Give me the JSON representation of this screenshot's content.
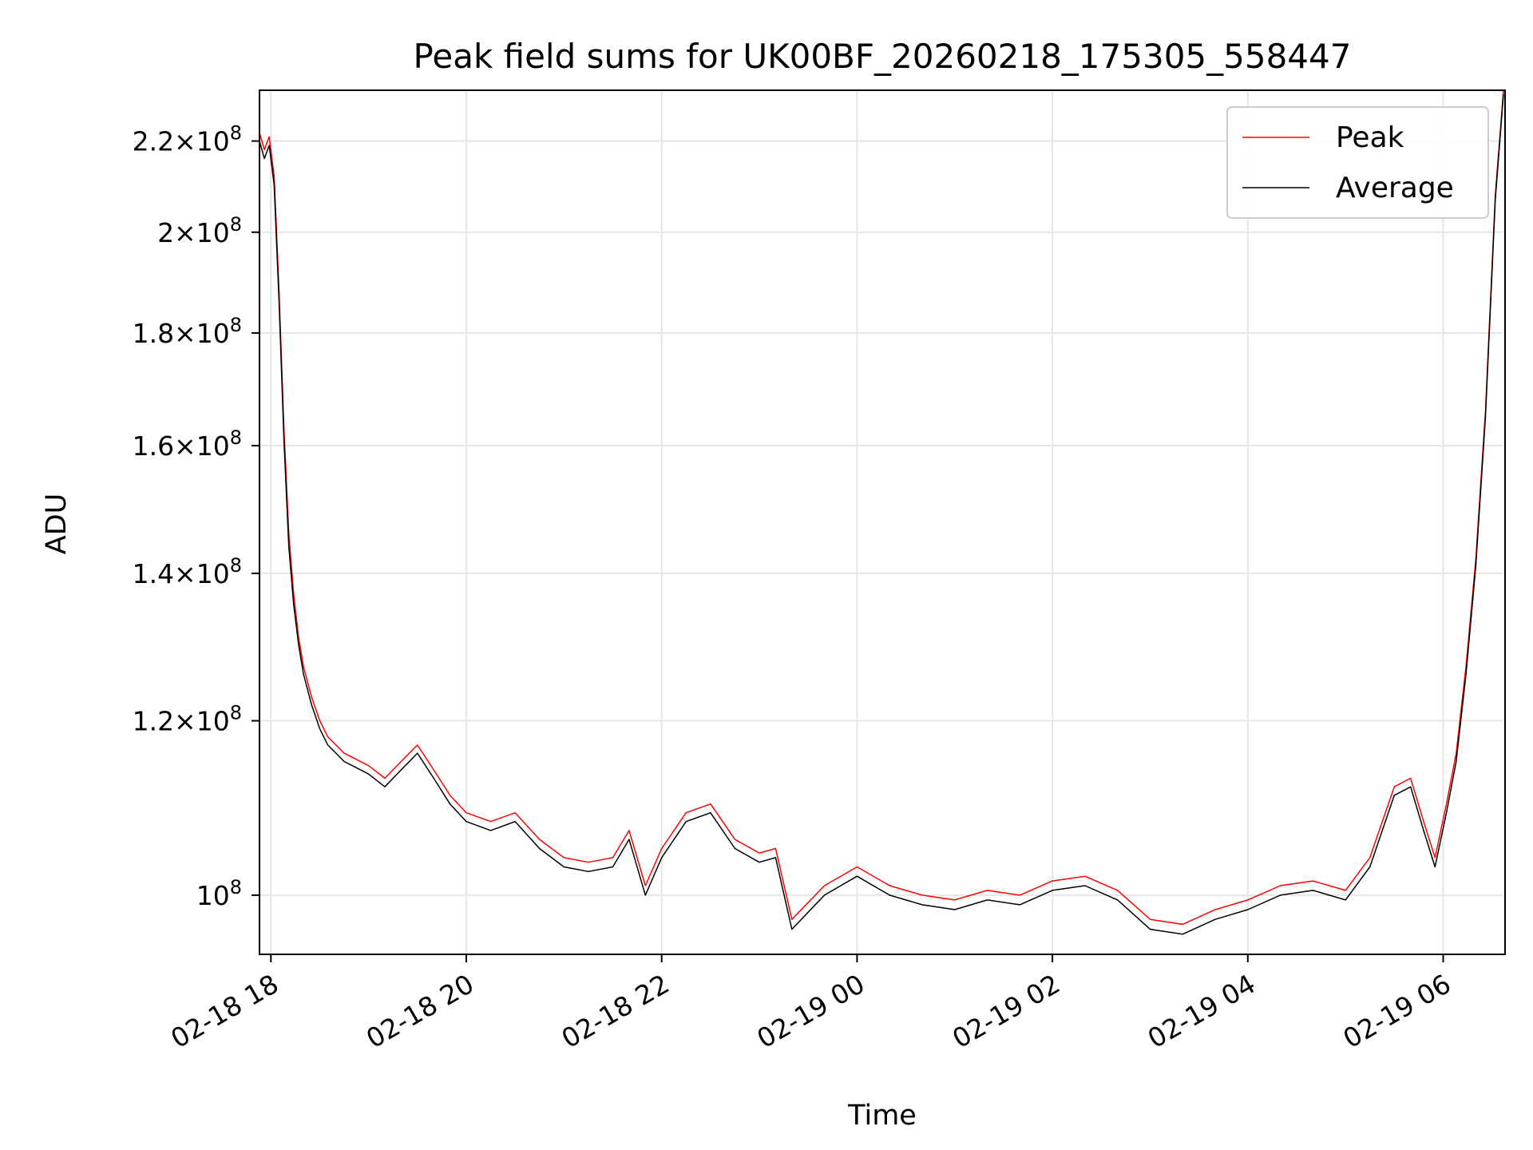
{
  "chart_data": {
    "type": "line",
    "title": "Peak field sums for UK00BF_20260218_175305_558447",
    "xlabel": "Time",
    "ylabel": "ADU",
    "y_scale": "log",
    "ylim": [
      94000000,
      232000000
    ],
    "xlim": [
      "2026-02-18T17:53",
      "2026-02-19T06:38"
    ],
    "x_ticks": [
      {
        "t": "2026-02-18T18:00",
        "label": "02-18 18"
      },
      {
        "t": "2026-02-18T20:00",
        "label": "02-18 20"
      },
      {
        "t": "2026-02-18T22:00",
        "label": "02-18 22"
      },
      {
        "t": "2026-02-19T00:00",
        "label": "02-19 00"
      },
      {
        "t": "2026-02-19T02:00",
        "label": "02-19 02"
      },
      {
        "t": "2026-02-19T04:00",
        "label": "02-19 04"
      },
      {
        "t": "2026-02-19T06:00",
        "label": "02-19 06"
      }
    ],
    "y_ticks": [
      {
        "value": 100000000,
        "mant": "",
        "exp": "8"
      },
      {
        "value": 120000000,
        "mant": "1.2",
        "exp": "8"
      },
      {
        "value": 140000000,
        "mant": "1.4",
        "exp": "8"
      },
      {
        "value": 160000000,
        "mant": "1.6",
        "exp": "8"
      },
      {
        "value": 180000000,
        "mant": "1.8",
        "exp": "8"
      },
      {
        "value": 200000000,
        "mant": "2",
        "exp": "8"
      },
      {
        "value": 220000000,
        "mant": "2.2",
        "exp": "8"
      }
    ],
    "grid": true,
    "legend_position": "top-right",
    "series": [
      {
        "name": "Peak",
        "color": "#ff0000",
        "x": [
          "2026-02-18T17:53",
          "2026-02-18T17:56",
          "2026-02-18T17:59",
          "2026-02-18T18:02",
          "2026-02-18T18:05",
          "2026-02-18T18:08",
          "2026-02-18T18:11",
          "2026-02-18T18:14",
          "2026-02-18T18:17",
          "2026-02-18T18:20",
          "2026-02-18T18:25",
          "2026-02-18T18:30",
          "2026-02-18T18:35",
          "2026-02-18T18:40",
          "2026-02-18T18:45",
          "2026-02-18T18:50",
          "2026-02-18T19:00",
          "2026-02-18T19:10",
          "2026-02-18T19:20",
          "2026-02-18T19:30",
          "2026-02-18T19:40",
          "2026-02-18T19:50",
          "2026-02-18T20:00",
          "2026-02-18T20:15",
          "2026-02-18T20:30",
          "2026-02-18T20:45",
          "2026-02-18T21:00",
          "2026-02-18T21:15",
          "2026-02-18T21:30",
          "2026-02-18T21:40",
          "2026-02-18T21:50",
          "2026-02-18T22:00",
          "2026-02-18T22:15",
          "2026-02-18T22:30",
          "2026-02-18T22:45",
          "2026-02-18T23:00",
          "2026-02-18T23:10",
          "2026-02-18T23:20",
          "2026-02-18T23:40",
          "2026-02-19T00:00",
          "2026-02-19T00:20",
          "2026-02-19T00:40",
          "2026-02-19T01:00",
          "2026-02-19T01:20",
          "2026-02-19T01:40",
          "2026-02-19T02:00",
          "2026-02-19T02:20",
          "2026-02-19T02:40",
          "2026-02-19T03:00",
          "2026-02-19T03:20",
          "2026-02-19T03:40",
          "2026-02-19T04:00",
          "2026-02-19T04:20",
          "2026-02-19T04:40",
          "2026-02-19T05:00",
          "2026-02-19T05:15",
          "2026-02-19T05:30",
          "2026-02-19T05:40",
          "2026-02-19T05:48",
          "2026-02-19T05:55",
          "2026-02-19T06:02",
          "2026-02-19T06:08",
          "2026-02-19T06:14",
          "2026-02-19T06:20",
          "2026-02-19T06:26",
          "2026-02-19T06:32",
          "2026-02-19T06:37"
        ],
        "values": [
          222000000,
          218000000,
          221000000,
          212000000,
          188000000,
          163000000,
          146000000,
          137000000,
          131000000,
          127000000,
          123000000,
          120000000,
          118000000,
          117000000,
          116000000,
          115500000,
          114500000,
          113000000,
          115000000,
          117000000,
          114000000,
          111000000,
          109000000,
          108000000,
          109000000,
          106000000,
          104000000,
          103500000,
          104000000,
          107000000,
          101000000,
          105000000,
          109000000,
          110000000,
          106000000,
          104500000,
          105000000,
          97500000,
          101000000,
          103000000,
          101000000,
          100000000,
          99500000,
          100500000,
          100000000,
          101500000,
          102000000,
          100500000,
          97500000,
          97000000,
          98500000,
          99500000,
          101000000,
          101500000,
          100500000,
          104000000,
          112000000,
          113000000,
          108000000,
          104000000,
          110000000,
          116000000,
          127000000,
          142000000,
          166000000,
          208000000,
          232000000
        ]
      },
      {
        "name": "Average",
        "color": "#000000",
        "x": [
          "2026-02-18T17:53",
          "2026-02-18T17:56",
          "2026-02-18T17:59",
          "2026-02-18T18:02",
          "2026-02-18T18:05",
          "2026-02-18T18:08",
          "2026-02-18T18:11",
          "2026-02-18T18:14",
          "2026-02-18T18:17",
          "2026-02-18T18:20",
          "2026-02-18T18:25",
          "2026-02-18T18:30",
          "2026-02-18T18:35",
          "2026-02-18T18:40",
          "2026-02-18T18:45",
          "2026-02-18T18:50",
          "2026-02-18T19:00",
          "2026-02-18T19:10",
          "2026-02-18T19:20",
          "2026-02-18T19:30",
          "2026-02-18T19:40",
          "2026-02-18T19:50",
          "2026-02-18T20:00",
          "2026-02-18T20:15",
          "2026-02-18T20:30",
          "2026-02-18T20:45",
          "2026-02-18T21:00",
          "2026-02-18T21:15",
          "2026-02-18T21:30",
          "2026-02-18T21:40",
          "2026-02-18T21:50",
          "2026-02-18T22:00",
          "2026-02-18T22:15",
          "2026-02-18T22:30",
          "2026-02-18T22:45",
          "2026-02-18T23:00",
          "2026-02-18T23:10",
          "2026-02-18T23:20",
          "2026-02-18T23:40",
          "2026-02-19T00:00",
          "2026-02-19T00:20",
          "2026-02-19T00:40",
          "2026-02-19T01:00",
          "2026-02-19T01:20",
          "2026-02-19T01:40",
          "2026-02-19T02:00",
          "2026-02-19T02:20",
          "2026-02-19T02:40",
          "2026-02-19T03:00",
          "2026-02-19T03:20",
          "2026-02-19T03:40",
          "2026-02-19T04:00",
          "2026-02-19T04:20",
          "2026-02-19T04:40",
          "2026-02-19T05:00",
          "2026-02-19T05:15",
          "2026-02-19T05:30",
          "2026-02-19T05:40",
          "2026-02-19T05:48",
          "2026-02-19T05:55",
          "2026-02-19T06:02",
          "2026-02-19T06:08",
          "2026-02-19T06:14",
          "2026-02-19T06:20",
          "2026-02-19T06:26",
          "2026-02-19T06:32",
          "2026-02-19T06:37"
        ],
        "values": [
          220000000,
          216000000,
          219000000,
          210000000,
          186000000,
          161000000,
          144000000,
          135500000,
          130000000,
          126000000,
          122000000,
          119000000,
          117000000,
          116000000,
          115000000,
          114500000,
          113500000,
          112000000,
          114000000,
          116000000,
          113000000,
          110000000,
          108000000,
          107000000,
          108000000,
          105000000,
          103000000,
          102500000,
          103000000,
          106000000,
          100000000,
          104000000,
          108000000,
          109000000,
          105000000,
          103500000,
          104000000,
          96500000,
          100000000,
          102000000,
          100000000,
          99000000,
          98500000,
          99500000,
          99000000,
          100500000,
          101000000,
          99500000,
          96500000,
          96000000,
          97500000,
          98500000,
          100000000,
          100500000,
          99500000,
          103000000,
          111000000,
          112000000,
          107000000,
          103000000,
          109000000,
          115000000,
          126000000,
          141000000,
          165000000,
          207000000,
          231000000
        ]
      }
    ]
  }
}
